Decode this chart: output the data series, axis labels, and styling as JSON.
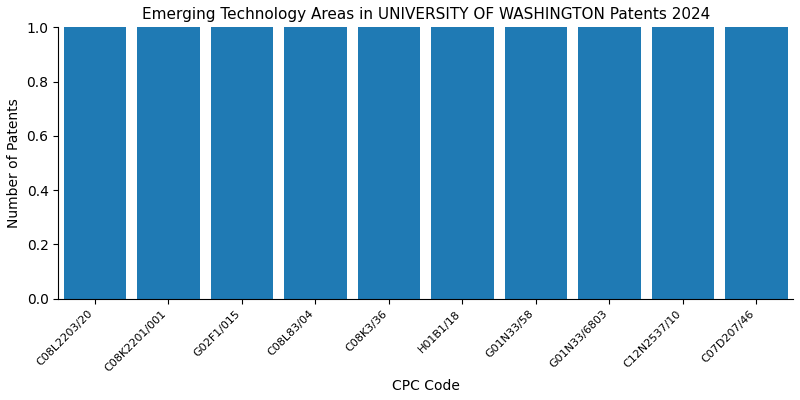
{
  "title": "Emerging Technology Areas in UNIVERSITY OF WASHINGTON Patents 2024",
  "xlabel": "CPC Code",
  "ylabel": "Number of Patents",
  "categories": [
    "C08L2203/20",
    "C08K2201/001",
    "G02F1/015",
    "C08L83/04",
    "C08K3/36",
    "H01B1/18",
    "G01N33/58",
    "G01N33/6803",
    "C12N2537/10",
    "C07D207/46"
  ],
  "values": [
    1,
    1,
    1,
    1,
    1,
    1,
    1,
    1,
    1,
    1
  ],
  "bar_color": "#1f7ab4",
  "ylim": [
    0,
    1.0
  ],
  "yticks": [
    0.0,
    0.2,
    0.4,
    0.6,
    0.8,
    1.0
  ],
  "figsize": [
    8.0,
    4.0
  ],
  "dpi": 100,
  "bar_width": 0.85,
  "title_fontsize": 11,
  "axis_label_fontsize": 10,
  "tick_fontsize": 8
}
